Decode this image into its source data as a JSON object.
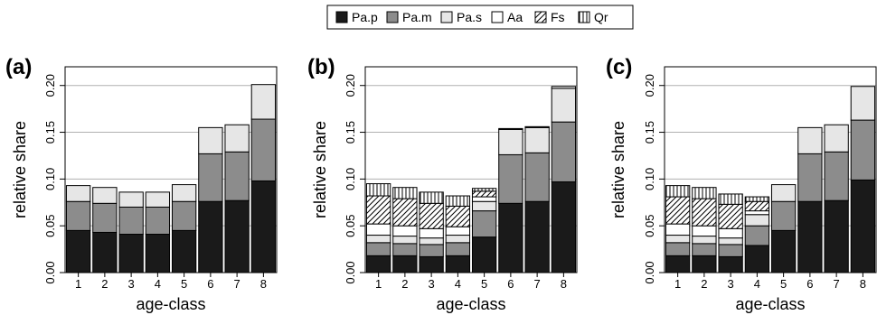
{
  "legend": {
    "entries": [
      {
        "key": "Pa.p",
        "label": "Pa.p",
        "fill": "#1a1a1a",
        "pattern": "solid"
      },
      {
        "key": "Pa.m",
        "label": "Pa.m",
        "fill": "#8c8c8c",
        "pattern": "solid"
      },
      {
        "key": "Pa.s",
        "label": "Pa.s",
        "fill": "#e6e6e6",
        "pattern": "solid"
      },
      {
        "key": "Aa",
        "label": "Aa",
        "fill": "#ffffff",
        "pattern": "solid"
      },
      {
        "key": "Fs",
        "label": "Fs",
        "fill": "#ffffff",
        "pattern": "diagonal"
      },
      {
        "key": "Qr",
        "label": "Qr",
        "fill": "#ffffff",
        "pattern": "vertical"
      }
    ]
  },
  "chart_data": [
    {
      "type": "bar",
      "stacked": true,
      "panel_label": "(a)",
      "xlabel": "age-class",
      "ylabel": "relative share",
      "categories": [
        "1",
        "2",
        "3",
        "4",
        "5",
        "6",
        "7",
        "8"
      ],
      "ylim": [
        0,
        0.22
      ],
      "yticks": [
        "0.00",
        "0.05",
        "0.10",
        "0.15",
        "0.20"
      ],
      "grid": true,
      "series": [
        {
          "name": "Pa.p",
          "values": [
            0.045,
            0.043,
            0.041,
            0.041,
            0.045,
            0.076,
            0.077,
            0.098
          ]
        },
        {
          "name": "Pa.m",
          "values": [
            0.031,
            0.031,
            0.029,
            0.029,
            0.031,
            0.051,
            0.052,
            0.066
          ]
        },
        {
          "name": "Pa.s",
          "values": [
            0.017,
            0.017,
            0.016,
            0.016,
            0.018,
            0.028,
            0.029,
            0.037
          ]
        },
        {
          "name": "Aa",
          "values": [
            0,
            0,
            0,
            0,
            0,
            0,
            0,
            0
          ]
        },
        {
          "name": "Fs",
          "values": [
            0,
            0,
            0,
            0,
            0,
            0,
            0,
            0
          ]
        },
        {
          "name": "Qr",
          "values": [
            0,
            0,
            0,
            0,
            0,
            0,
            0,
            0
          ]
        }
      ]
    },
    {
      "type": "bar",
      "stacked": true,
      "panel_label": "(b)",
      "xlabel": "age-class",
      "ylabel": "relative share",
      "categories": [
        "1",
        "2",
        "3",
        "4",
        "5",
        "6",
        "7",
        "8"
      ],
      "ylim": [
        0,
        0.22
      ],
      "yticks": [
        "0.00",
        "0.05",
        "0.10",
        "0.15",
        "0.20"
      ],
      "grid": true,
      "series": [
        {
          "name": "Pa.p",
          "values": [
            0.018,
            0.018,
            0.017,
            0.018,
            0.038,
            0.074,
            0.076,
            0.097
          ]
        },
        {
          "name": "Pa.m",
          "values": [
            0.014,
            0.013,
            0.013,
            0.014,
            0.028,
            0.052,
            0.052,
            0.064
          ]
        },
        {
          "name": "Pa.s",
          "values": [
            0.008,
            0.008,
            0.007,
            0.008,
            0.01,
            0.027,
            0.027,
            0.036
          ]
        },
        {
          "name": "Aa",
          "values": [
            0.012,
            0.011,
            0.01,
            0.009,
            0.005,
            0.001,
            0.001,
            0.002
          ]
        },
        {
          "name": "Fs",
          "values": [
            0.03,
            0.029,
            0.027,
            0.022,
            0.006,
            0,
            0,
            0
          ]
        },
        {
          "name": "Qr",
          "values": [
            0.013,
            0.012,
            0.012,
            0.011,
            0.003,
            0,
            0,
            0
          ]
        }
      ]
    },
    {
      "type": "bar",
      "stacked": true,
      "panel_label": "(c)",
      "xlabel": "age-class",
      "ylabel": "relative share",
      "categories": [
        "1",
        "2",
        "3",
        "4",
        "5",
        "6",
        "7",
        "8"
      ],
      "ylim": [
        0,
        0.22
      ],
      "yticks": [
        "0.00",
        "0.05",
        "0.10",
        "0.15",
        "0.20"
      ],
      "grid": true,
      "series": [
        {
          "name": "Pa.p",
          "values": [
            0.018,
            0.018,
            0.017,
            0.029,
            0.045,
            0.076,
            0.077,
            0.099
          ]
        },
        {
          "name": "Pa.m",
          "values": [
            0.014,
            0.013,
            0.013,
            0.021,
            0.031,
            0.051,
            0.052,
            0.064
          ]
        },
        {
          "name": "Pa.s",
          "values": [
            0.008,
            0.008,
            0.007,
            0.012,
            0.018,
            0.028,
            0.029,
            0.036
          ]
        },
        {
          "name": "Aa",
          "values": [
            0.012,
            0.011,
            0.01,
            0.004,
            0,
            0,
            0,
            0
          ]
        },
        {
          "name": "Fs",
          "values": [
            0.029,
            0.029,
            0.026,
            0.01,
            0,
            0,
            0,
            0
          ]
        },
        {
          "name": "Qr",
          "values": [
            0.012,
            0.012,
            0.011,
            0.005,
            0,
            0,
            0,
            0
          ]
        }
      ]
    }
  ]
}
